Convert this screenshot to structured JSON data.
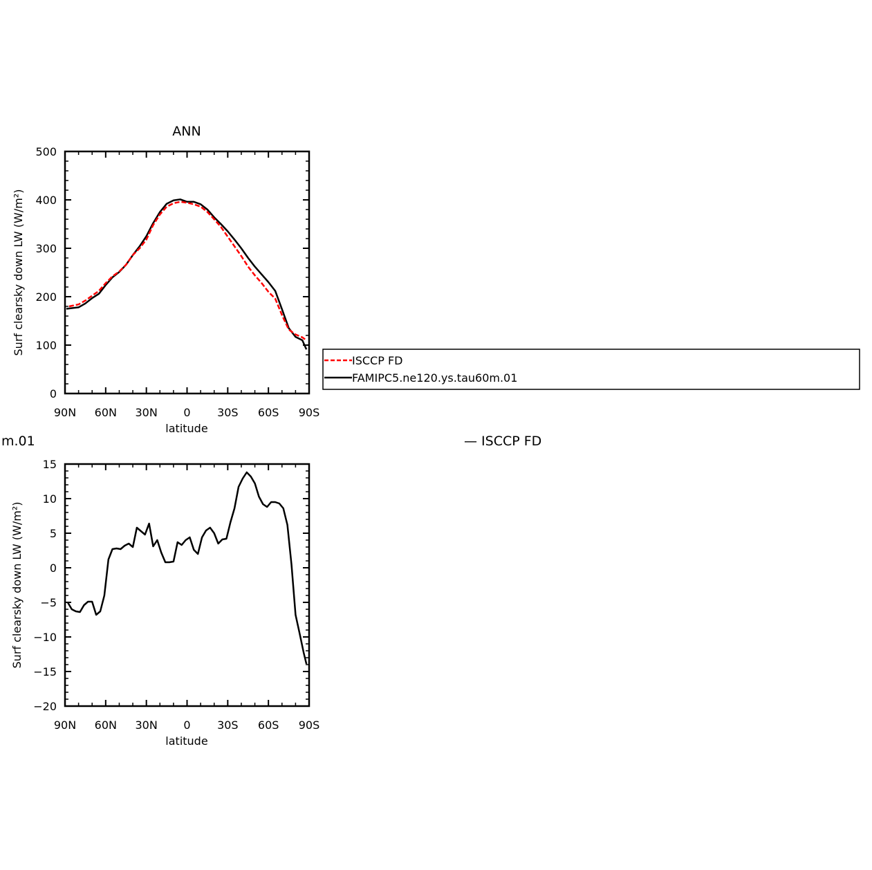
{
  "chart_data": [
    {
      "type": "line",
      "title": "ANN",
      "xlabel": "latitude",
      "ylabel": "Surf clearsky down LW (W/m²)",
      "xlim": [
        -90,
        90
      ],
      "ylim": [
        0,
        500
      ],
      "yticks": [
        0,
        100,
        200,
        300,
        400,
        500
      ],
      "xticks": [
        -90,
        -60,
        -30,
        0,
        30,
        60,
        90
      ],
      "xticklabels": [
        "90N",
        "60N",
        "30N",
        "0",
        "30S",
        "60S",
        "90S"
      ],
      "legend_position": "right",
      "series": [
        {
          "name": "ISCCP FD",
          "color": "#ff0000",
          "dash": "dashed",
          "x": [
            -87,
            -80,
            -75,
            -70,
            -65,
            -60,
            -55,
            -50,
            -45,
            -40,
            -35,
            -30,
            -25,
            -20,
            -15,
            -10,
            -5,
            0,
            5,
            10,
            15,
            20,
            25,
            30,
            35,
            40,
            45,
            50,
            55,
            60,
            65,
            70,
            75,
            80,
            85,
            88
          ],
          "y": [
            180,
            184,
            192,
            202,
            212,
            228,
            242,
            252,
            266,
            286,
            300,
            318,
            348,
            370,
            386,
            393,
            396,
            394,
            391,
            386,
            375,
            360,
            344,
            324,
            304,
            284,
            262,
            244,
            228,
            210,
            196,
            162,
            132,
            122,
            116,
            110
          ]
        },
        {
          "name": "FAMIPC5.ne120.ys.tau60m.01",
          "color": "#000000",
          "dash": "solid",
          "x": [
            -89,
            -80,
            -75,
            -70,
            -65,
            -60,
            -55,
            -50,
            -45,
            -40,
            -35,
            -30,
            -25,
            -20,
            -15,
            -10,
            -5,
            0,
            5,
            10,
            15,
            20,
            25,
            30,
            35,
            40,
            45,
            50,
            55,
            60,
            65,
            70,
            75,
            80,
            85,
            88
          ],
          "y": [
            175,
            178,
            186,
            197,
            206,
            224,
            240,
            251,
            266,
            286,
            304,
            325,
            352,
            375,
            392,
            399,
            401,
            396,
            396,
            391,
            380,
            364,
            350,
            335,
            318,
            300,
            280,
            262,
            246,
            230,
            212,
            174,
            135,
            117,
            110,
            91
          ]
        }
      ]
    },
    {
      "type": "line",
      "title_visible_fragment": "m.01",
      "legend_visible_fragment": "— ISCCP FD",
      "xlabel": "latitude",
      "ylabel": "Surf clearsky down LW (W/m²)",
      "xlim": [
        -90,
        90
      ],
      "ylim": [
        -20,
        15
      ],
      "yticks": [
        -20,
        -15,
        -10,
        -5,
        0,
        5,
        10,
        15
      ],
      "xticks": [
        -90,
        -60,
        -30,
        0,
        30,
        60,
        90
      ],
      "xticklabels": [
        "90N",
        "60N",
        "30N",
        "0",
        "30S",
        "60S",
        "90S"
      ],
      "series": [
        {
          "color": "#000000",
          "dash": "solid",
          "x": [
            -88,
            -85,
            -82,
            -79,
            -76,
            -73,
            -70,
            -67,
            -64,
            -61,
            -58,
            -55,
            -52,
            -49,
            -46,
            -43,
            -40,
            -37,
            -34,
            -31,
            -28,
            -25,
            -22,
            -19,
            -16,
            -13,
            -10,
            -7,
            -4,
            -1,
            2,
            5,
            8,
            11,
            14,
            17,
            20,
            23,
            26,
            29,
            32,
            35,
            38,
            41,
            44,
            47,
            50,
            53,
            56,
            59,
            62,
            65,
            68,
            71,
            74,
            77,
            80,
            83,
            86,
            88
          ],
          "y": [
            -5.0,
            -6.0,
            -6.3,
            -6.4,
            -5.4,
            -4.9,
            -4.9,
            -6.8,
            -6.3,
            -4.0,
            1.2,
            2.7,
            2.8,
            2.7,
            3.2,
            3.5,
            3.0,
            5.8,
            5.3,
            4.8,
            6.4,
            3.1,
            4.0,
            2.2,
            0.8,
            0.8,
            0.9,
            3.7,
            3.3,
            4.0,
            4.4,
            2.6,
            2.0,
            4.4,
            5.4,
            5.8,
            5.0,
            3.5,
            4.1,
            4.2,
            6.6,
            8.6,
            11.7,
            12.9,
            13.8,
            13.2,
            12.2,
            10.3,
            9.2,
            8.8,
            9.5,
            9.5,
            9.3,
            8.6,
            6.2,
            0.5,
            -6.8,
            -9.5,
            -12.3,
            -13.9
          ]
        }
      ]
    }
  ]
}
